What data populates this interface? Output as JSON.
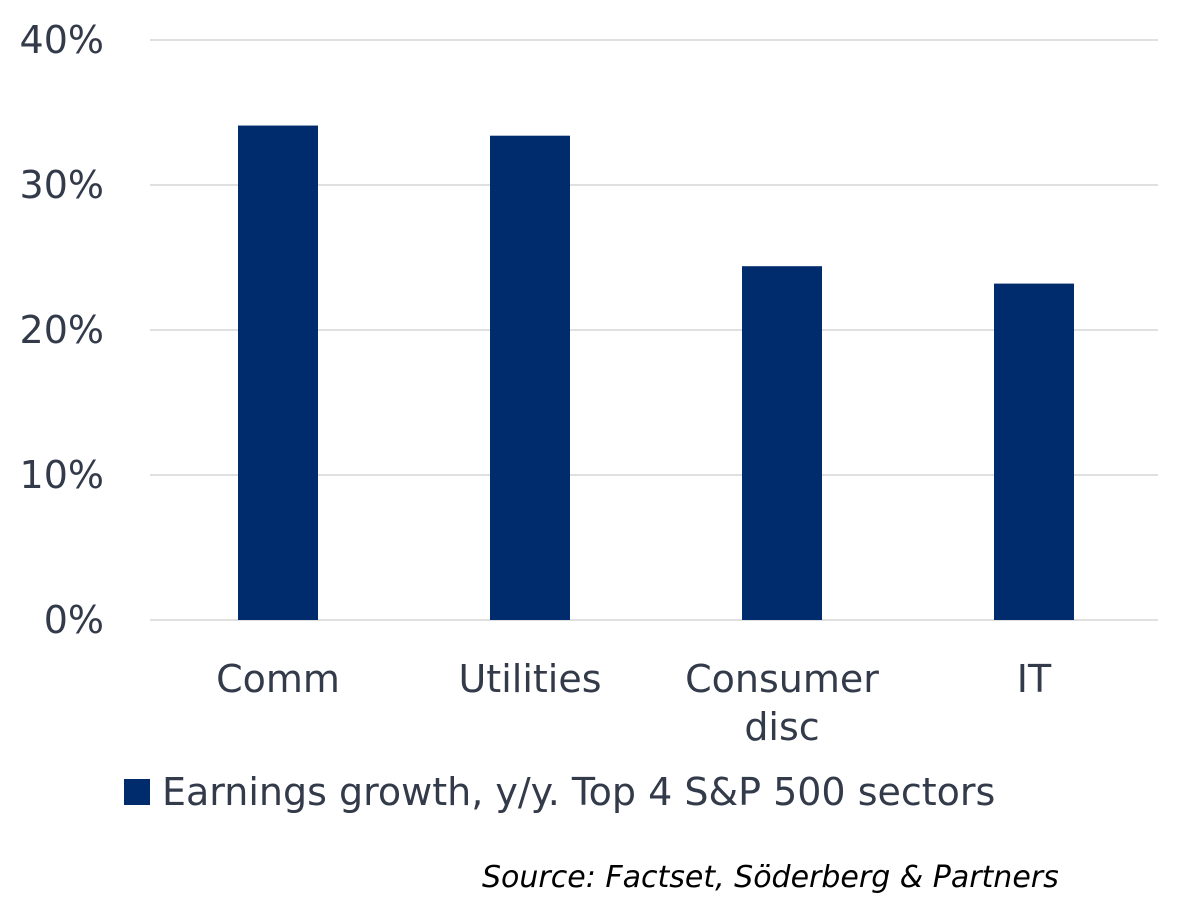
{
  "colors": {
    "bar": "#002c6e",
    "grid": "#e0e0e0",
    "text": "#333b4a"
  },
  "chart_data": {
    "type": "bar",
    "categories": [
      [
        "Comm"
      ],
      [
        "Utilities"
      ],
      [
        "Consumer",
        "disc"
      ],
      [
        "IT"
      ]
    ],
    "series": [
      {
        "name": "Earnings growth, y/y. Top 4 S&P 500 sectors",
        "values": [
          34.1,
          33.4,
          24.4,
          23.2
        ]
      }
    ],
    "yticks": [
      "0%",
      "10%",
      "20%",
      "30%",
      "40%"
    ],
    "ylim": [
      0,
      40
    ],
    "grid": true,
    "legend_position": "bottom-left"
  },
  "legend": {
    "label": "Earnings growth, y/y. Top 4 S&P 500 sectors"
  },
  "source": "Source: Factset, Söderberg & Partners"
}
